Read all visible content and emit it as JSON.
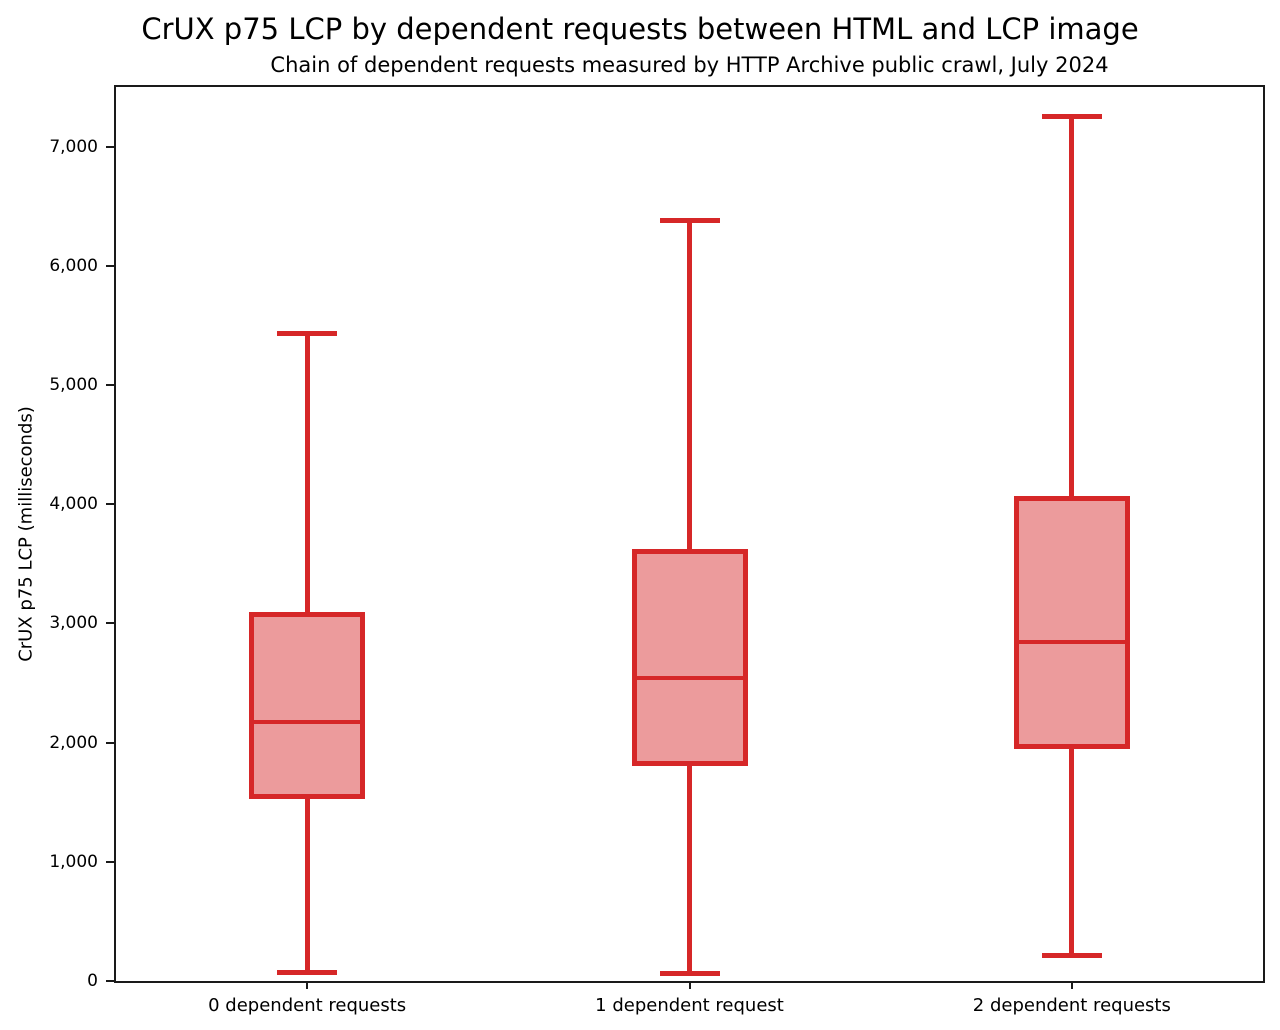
{
  "chart_data": {
    "type": "boxplot",
    "title": "CrUX p75 LCP by dependent requests between HTML and LCP image",
    "subtitle": "Chain of dependent requests measured by HTTP Archive public crawl, July 2024",
    "ylabel": "CrUX p75 LCP (milliseconds)",
    "xlabel": "",
    "ylim": [
      0,
      7500
    ],
    "yticks": [
      0,
      1000,
      2000,
      3000,
      4000,
      5000,
      6000,
      7000
    ],
    "ytick_labels": [
      "0",
      "1,000",
      "2,000",
      "3,000",
      "4,000",
      "5,000",
      "6,000",
      "7,000"
    ],
    "categories": [
      "0 dependent requests",
      "1 dependent request",
      "2 dependent requests"
    ],
    "series": [
      {
        "category": "0 dependent requests",
        "whisker_low": 75,
        "q1": 1525,
        "median": 2170,
        "q3": 3095,
        "whisker_high": 5430
      },
      {
        "category": "1 dependent request",
        "whisker_low": 65,
        "q1": 1800,
        "median": 2540,
        "q3": 3620,
        "whisker_high": 6380
      },
      {
        "category": "2 dependent requests",
        "whisker_low": 210,
        "q1": 1950,
        "median": 2840,
        "q3": 4070,
        "whisker_high": 7250
      }
    ],
    "grid": false,
    "legend": "none",
    "colors": {
      "box_edge": "#d62728",
      "box_fill": "#ec9b9c",
      "axis": "#1a1a1a",
      "text": "#000000"
    }
  }
}
